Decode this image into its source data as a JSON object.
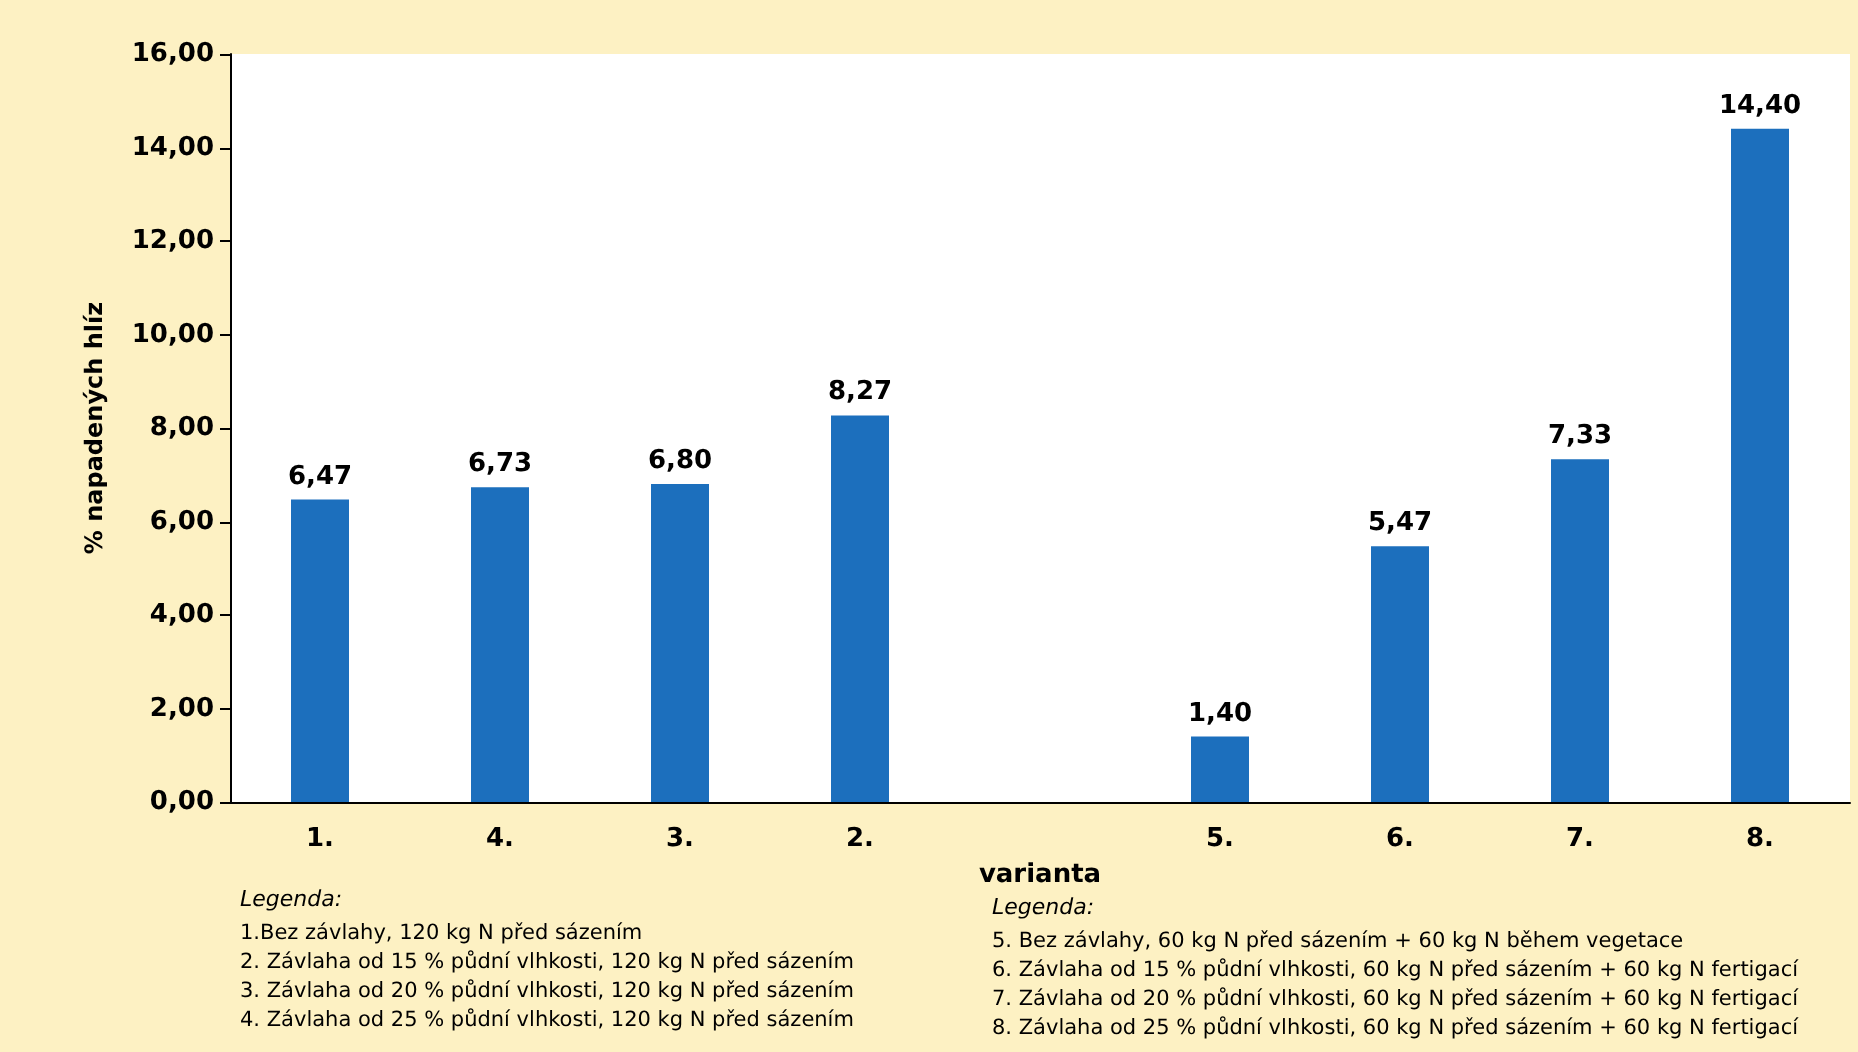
{
  "chart_data": {
    "type": "bar",
    "ylabel": "% napadených hlíz",
    "xlabel": "varianta",
    "categories": [
      "1.",
      "4.",
      "3.",
      "2.",
      null,
      "5.",
      "6.",
      "7.",
      "8."
    ],
    "values": [
      6.47,
      6.73,
      6.8,
      8.27,
      null,
      1.4,
      5.47,
      7.33,
      14.4
    ],
    "value_labels": [
      "6,47",
      "6,73",
      "6,80",
      "8,27",
      null,
      "1,40",
      "5,47",
      "7,33",
      "14,40"
    ],
    "color": "#1c6fbd",
    "ylim": [
      0,
      16
    ],
    "yticks": [
      {
        "value": 0,
        "label": "0,00"
      },
      {
        "value": 2,
        "label": "2,00"
      },
      {
        "value": 4,
        "label": "4,00"
      },
      {
        "value": 6,
        "label": "6,00"
      },
      {
        "value": 8,
        "label": "8,00"
      },
      {
        "value": 10,
        "label": "10,00"
      },
      {
        "value": 12,
        "label": "12,00"
      },
      {
        "value": 14,
        "label": "14,00"
      },
      {
        "value": 16,
        "label": "16,00"
      }
    ],
    "grid": false,
    "annotations": [
      "Legenda:",
      "1.Bez závlahy, 120 kg N před sázením",
      "2. Závlaha od 15 % půdní vlhkosti, 120 kg N před sázením",
      "3. Závlaha od 20 % půdní vlhkosti, 120 kg N před sázením",
      "4. Závlaha od 25 % půdní vlhkosti, 120 kg N před sázením",
      "Legenda:",
      "5. Bez závlahy, 60 kg N před sázením + 60 kg N během vegetace",
      "6. Závlaha od 15 % půdní vlhkosti, 60 kg N před sázením + 60 kg N fertigací",
      "7. Závlaha od 20 % půdní vlhkosti, 60 kg N před sázením + 60 kg N fertigací",
      "8. Závlaha od 25 % půdní vlhkosti, 60 kg N před sázením + 60 kg N fertigací"
    ]
  }
}
